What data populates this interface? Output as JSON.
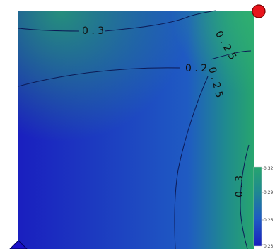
{
  "chart_data": {
    "type": "heatmap",
    "title": "",
    "xlabel": "",
    "ylabel": "",
    "colormap": [
      "#1a1fbf",
      "#1f5bc2",
      "#1f8a8f",
      "#27a56e"
    ],
    "colorbar": {
      "ticks": [
        "0.32",
        "0.29",
        "0.26",
        "0.23"
      ],
      "range": [
        0.23,
        0.32
      ]
    },
    "contour_labels": [
      {
        "text": "0 . 3"
      },
      {
        "text": "0 . 2"
      },
      {
        "text": "0 . 2 5"
      },
      {
        "text": "0 . 2 5"
      },
      {
        "text": "0 . 3"
      }
    ],
    "markers": [
      {
        "shape": "circle",
        "color": "#e8141c"
      },
      {
        "shape": "triangle",
        "color": "#1a10c8"
      }
    ]
  }
}
